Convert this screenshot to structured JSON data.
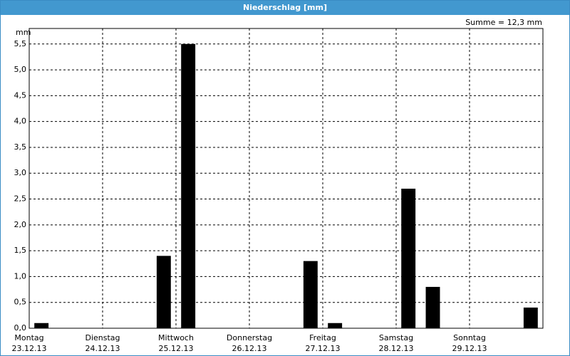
{
  "chart_data": {
    "type": "bar",
    "title": "Niederschlag [mm]",
    "ylabel": "mm",
    "annotation": "Summe = 12,3 mm",
    "categories": [
      "Montag",
      null,
      null,
      "Dienstag",
      null,
      null,
      "Mittwoch",
      null,
      null,
      "Donnerstag",
      null,
      null,
      "Freitag",
      null,
      null,
      "Samstag",
      null,
      null,
      "Sonntag",
      null,
      null
    ],
    "dates": [
      "23.12.13",
      null,
      null,
      "24.12.13",
      null,
      null,
      "25.12.13",
      null,
      null,
      "26.12.13",
      null,
      null,
      "27.12.13",
      null,
      null,
      "28.12.13",
      null,
      null,
      "29.12.13",
      null,
      null
    ],
    "values": [
      0.1,
      0,
      0,
      0,
      0,
      1.4,
      5.5,
      0,
      0,
      0,
      0,
      1.3,
      0.1,
      0,
      0,
      2.7,
      0.8,
      0,
      0,
      0,
      0.4
    ],
    "color": "#000000",
    "ylim": [
      0,
      5.8
    ],
    "yticks": [
      {
        "value": 0,
        "label": "0,0"
      },
      {
        "value": 0.5,
        "label": "0,5"
      },
      {
        "value": 1,
        "label": "1,0"
      },
      {
        "value": 1.5,
        "label": "1,5"
      },
      {
        "value": 2,
        "label": "2,0"
      },
      {
        "value": 2.5,
        "label": "2,5"
      },
      {
        "value": 3,
        "label": "3,0"
      },
      {
        "value": 3.5,
        "label": "3,5"
      },
      {
        "value": 4,
        "label": "4,0"
      },
      {
        "value": 4.5,
        "label": "4,5"
      },
      {
        "value": 5,
        "label": "5,0"
      },
      {
        "value": 5.5,
        "label": "5,5"
      }
    ],
    "grid": true
  }
}
